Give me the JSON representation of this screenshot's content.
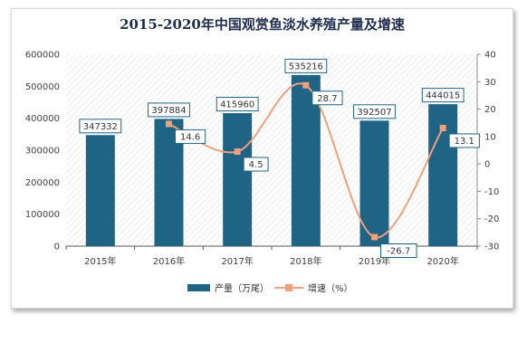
{
  "chart_data": {
    "type": "bar+line",
    "title": "2015-2020年中国观赏鱼淡水养殖产量及增速",
    "categories": [
      "2015年",
      "2016年",
      "2017年",
      "2018年",
      "2019年",
      "2020年"
    ],
    "series": [
      {
        "name": "产量（万尾）",
        "type": "bar",
        "axis": "left",
        "values": [
          347332,
          397884,
          415960,
          535216,
          392507,
          444015
        ],
        "color": "#1f6484"
      },
      {
        "name": "增速（%）",
        "type": "line",
        "axis": "right",
        "values": [
          null,
          14.6,
          4.5,
          28.7,
          -26.7,
          13.1
        ],
        "color": "#f0a07c"
      }
    ],
    "left_axis": {
      "ylim": [
        0,
        600000
      ],
      "ticks": [
        "0",
        "100000",
        "200000",
        "300000",
        "400000",
        "500000",
        "600000"
      ]
    },
    "right_axis": {
      "ylim": [
        -30,
        40
      ],
      "ticks": [
        "-30",
        "-20",
        "-10",
        "0",
        "10",
        "20",
        "30",
        "40"
      ]
    },
    "grid": false,
    "legend": "bottom",
    "background": "diagonal-hatch"
  },
  "legend": {
    "bar_label": "产量（万尾）",
    "line_label": "增速（%）"
  }
}
